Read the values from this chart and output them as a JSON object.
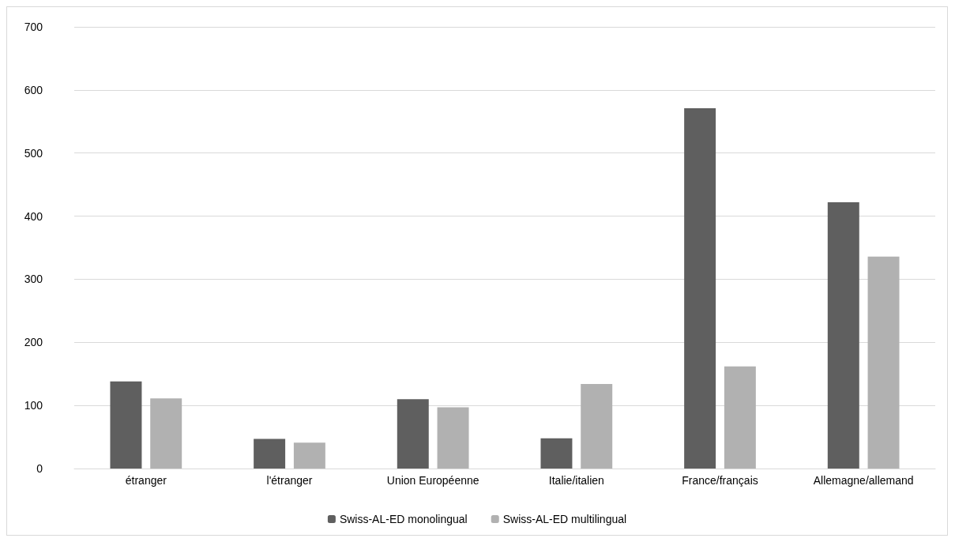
{
  "chart_data": {
    "type": "bar",
    "categories": [
      "étranger",
      "l'étranger",
      "Union Européenne",
      "Italie/italien",
      "France/français",
      "Allemagne/allemand"
    ],
    "series": [
      {
        "name": "Swiss-AL-ED monolingual",
        "color": "#5f5f5f",
        "values": [
          138,
          47,
          110,
          48,
          571,
          422
        ]
      },
      {
        "name": "Swiss-AL-ED multilingual",
        "color": "#b1b1b1",
        "values": [
          111,
          41,
          97,
          134,
          162,
          336
        ]
      }
    ],
    "ylim": [
      0,
      700
    ],
    "yticks": [
      0,
      100,
      200,
      300,
      400,
      500,
      600,
      700
    ],
    "grid": "y",
    "legend": "bottom"
  }
}
